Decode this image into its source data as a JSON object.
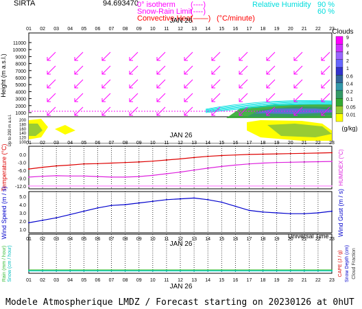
{
  "header": {
    "site": "SIRTA",
    "coords": "94.693470",
    "legend_left": [
      {
        "label": "0° isotherm",
        "swatch": "(----)",
        "color": "#ff00ff"
      },
      {
        "label": "Snow-Rain Limit",
        "swatch": "(----)",
        "color": "#ff00ff"
      },
      {
        "label": "Convective Heat",
        "swatch": "(——)",
        "unit": "(°C/minute)",
        "color": "#ff0000"
      }
    ],
    "legend_right": [
      {
        "label": "Relative Humidity",
        "v1": "90 %",
        "v2": "60 %",
        "color": "#00e0e0"
      }
    ]
  },
  "time_axis": {
    "hours": [
      "01",
      "02",
      "03",
      "04",
      "05",
      "06",
      "07",
      "08",
      "09",
      "10",
      "11",
      "12",
      "13",
      "14",
      "15",
      "16",
      "17",
      "18",
      "19",
      "20",
      "21",
      "22",
      "23"
    ],
    "date": "JAN 26",
    "xlabel": "Universal Time"
  },
  "clouds_colorbar": {
    "title": "Clouds",
    "unit": "(g/kg)",
    "levels": [
      "9",
      "6",
      "4",
      "2",
      "1",
      "0.6",
      "0.4",
      "0.2",
      "0.1",
      "0.05",
      "0.01"
    ],
    "colors": [
      "#ff00ff",
      "#cc33ff",
      "#9966ff",
      "#6666ff",
      "#3333cc",
      "#336699",
      "#3399aa",
      "#339966",
      "#33aa33",
      "#99cc33",
      "#ffff00"
    ]
  },
  "chart_data": [
    {
      "type": "area",
      "title": "",
      "ylabel": "Height (m a.s.l.)",
      "ylabel2": "Up to 200 m a.s.l.",
      "yticks": [
        "11000",
        "10000",
        "9000",
        "8000",
        "7000",
        "6000",
        "5000",
        "4000",
        "3000",
        "2000",
        "1000",
        "200",
        "180",
        "160",
        "140",
        "120",
        "100"
      ],
      "notes": "Wind arrows point down-left throughout; low cloud layer 1000-2000 m from hour 16 onward; near-surface cloud hours 1-3 and 17-22"
    },
    {
      "type": "line",
      "ylabel": "Temperature (°C)",
      "ylabel2": "HUMIDEX (°C)",
      "yticks": [
        "0.0",
        "-3.0",
        "-6.0",
        "-9.0",
        "-12.0"
      ],
      "ylim": [
        -12,
        1
      ],
      "x": [
        1,
        2,
        3,
        4,
        5,
        6,
        7,
        8,
        9,
        10,
        11,
        12,
        13,
        14,
        15,
        16,
        17,
        18,
        19,
        20,
        21,
        22,
        23
      ],
      "series": [
        {
          "color": "#dd0000",
          "values": [
            -5.4,
            -4.8,
            -4.3,
            -4.0,
            -3.6,
            -3.5,
            -3.3,
            -3.1,
            -2.9,
            -2.6,
            -2.2,
            -1.8,
            -1.3,
            -0.9,
            -0.6,
            -0.4,
            -0.2,
            -0.1,
            0.0,
            0.1,
            0.2,
            0.3,
            0.4
          ]
        },
        {
          "color": "#dd22dd",
          "values": [
            -8.3,
            -8.0,
            -7.8,
            -7.9,
            -7.9,
            -8.1,
            -8.3,
            -8.3,
            -8.1,
            -7.7,
            -7.1,
            -6.5,
            -5.8,
            -5.1,
            -4.5,
            -4.0,
            -3.6,
            -3.3,
            -3.1,
            -3.0,
            -2.9,
            -2.8,
            -2.7
          ]
        },
        {
          "color": "#ff88ff",
          "values": [
            -11.5,
            -11.5,
            -11.5,
            -11.5,
            -11.5,
            -11.5,
            -11.5,
            -11.5,
            -11.5,
            -11.5,
            -11.5,
            -11.5,
            -11.5,
            -11.5,
            -11.5,
            -11.5,
            -11.5,
            -11.5,
            -11.5,
            -11.5,
            -11.5,
            -11.5,
            -11.5
          ]
        }
      ]
    },
    {
      "type": "line",
      "ylabel": "Wind Speed (m / s)",
      "ylabel2": "Wind Gust (m / s)",
      "yticks": [
        "5.0",
        "4.0",
        "3.0",
        "2.0",
        "1.0"
      ],
      "ylim": [
        1,
        5
      ],
      "x": [
        1,
        2,
        3,
        4,
        5,
        6,
        7,
        8,
        9,
        10,
        11,
        12,
        13,
        14,
        15,
        16,
        17,
        18,
        19,
        20,
        21,
        22,
        23
      ],
      "series": [
        {
          "color": "#0000cc",
          "values": [
            1.8,
            2.1,
            2.4,
            2.8,
            3.2,
            3.6,
            3.9,
            4.0,
            4.2,
            4.4,
            4.6,
            4.7,
            4.8,
            4.6,
            4.3,
            3.8,
            3.3,
            3.1,
            3.0,
            2.9,
            2.9,
            3.0,
            3.2
          ]
        }
      ]
    },
    {
      "type": "line",
      "ylabel": "Rain (mm / hour)",
      "ylabel_b": "Snow (cm / hour)",
      "ylabel2": "CAPE (J / g)",
      "ylabel2_b": "Snow Depth (cm)",
      "ylabel2_c": "Cloud Fraction",
      "series": [
        {
          "color": "#33bb33",
          "values": [
            0.1,
            0.1,
            0.1,
            0.1,
            0.1,
            0.1,
            0.1,
            0.1,
            0.1,
            0.1,
            0.1,
            0.1,
            0.1,
            0.1,
            0.1,
            0.1,
            0.1,
            0.1,
            0.1,
            0.1,
            0.1,
            0.1,
            0.1
          ]
        },
        {
          "color": "#00cccc",
          "values": [
            0.05,
            0.05,
            0.05,
            0.05,
            0.05,
            0.05,
            0.05,
            0.05,
            0.05,
            0.05,
            0.05,
            0.05,
            0.05,
            0.05,
            0.05,
            0.05,
            0.05,
            0.05,
            0.05,
            0.05,
            0.05,
            0.05,
            0.05
          ]
        }
      ]
    }
  ],
  "footer": "Modele Atmospherique LMDZ / Forecast starting on 20230126 at 0hUT"
}
